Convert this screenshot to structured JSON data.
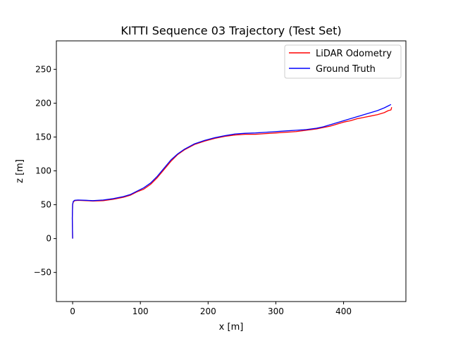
{
  "chart_data": {
    "type": "line",
    "title": "KITTI Sequence 03 Trajectory (Test Set)",
    "xlabel": "x [m]",
    "ylabel": "z [m]",
    "xlim": [
      -24,
      492
    ],
    "ylim": [
      -93,
      292
    ],
    "xticks": [
      0,
      100,
      200,
      300,
      400
    ],
    "yticks": [
      -50,
      0,
      50,
      100,
      150,
      200,
      250
    ],
    "grid": false,
    "legend_position": "top-right",
    "series": [
      {
        "name": "LiDAR Odometry",
        "color": "#ff0000",
        "x": [
          0,
          -0.5,
          0,
          1,
          3,
          8,
          20,
          30,
          45,
          60,
          75,
          85,
          95,
          105,
          115,
          125,
          135,
          145,
          155,
          165,
          180,
          195,
          210,
          225,
          240,
          255,
          270,
          285,
          300,
          315,
          330,
          345,
          360,
          370,
          380,
          390,
          400,
          410,
          420,
          430,
          440,
          450,
          460,
          466,
          470,
          471
        ],
        "y": [
          0,
          30,
          50,
          54,
          56,
          56.5,
          56,
          55.5,
          56,
          58,
          61,
          64,
          69,
          73,
          80,
          90,
          102,
          114,
          124,
          131,
          139,
          144,
          148,
          151,
          153,
          154,
          154,
          155,
          156,
          157,
          158,
          160,
          162,
          164,
          166,
          169,
          172,
          174,
          177,
          179,
          181,
          183,
          186,
          189,
          190,
          194
        ]
      },
      {
        "name": "Ground Truth",
        "color": "#0000ff",
        "x": [
          0,
          -0.5,
          0,
          1,
          3,
          8,
          20,
          30,
          45,
          60,
          75,
          85,
          95,
          105,
          115,
          125,
          135,
          145,
          155,
          165,
          180,
          195,
          210,
          225,
          240,
          255,
          270,
          285,
          300,
          315,
          330,
          345,
          360,
          370,
          380,
          390,
          400,
          410,
          420,
          430,
          440,
          450,
          460,
          466,
          470
        ],
        "y": [
          0,
          30,
          51,
          55,
          56.5,
          57,
          56.5,
          56,
          57,
          59,
          62,
          65,
          70,
          75,
          82,
          92,
          104,
          116,
          125,
          132,
          140,
          145,
          149,
          152,
          154.5,
          155.5,
          156,
          157,
          158,
          159,
          160,
          161,
          163,
          165,
          168,
          171,
          174,
          177,
          180,
          183,
          186,
          189,
          193,
          196,
          198
        ]
      }
    ]
  }
}
